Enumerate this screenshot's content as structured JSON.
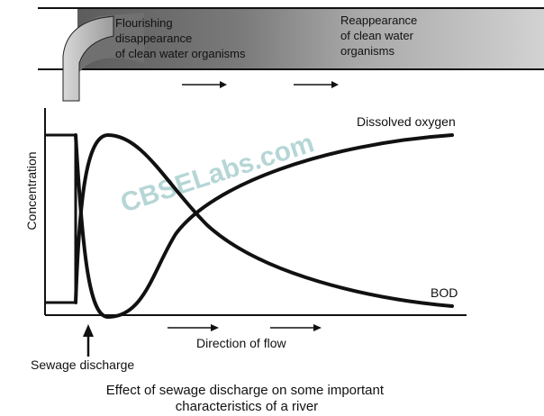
{
  "river_banner": {
    "text_left": [
      "Flourishing",
      "disappearance",
      "of clean water organisms"
    ],
    "text_right": [
      "Reappearance",
      "of clean water",
      "organisms"
    ]
  },
  "graph": {
    "ylabel": "Concentration",
    "curve_labels": {
      "oxygen": "Dissolved oxygen",
      "bod": "BOD"
    },
    "flow_label": "Direction of flow",
    "discharge_label": "Sewage discharge"
  },
  "watermark": "CBSELabs.com",
  "caption": [
    "Effect of sewage discharge on some important",
    "characteristics of a river"
  ],
  "colors": {
    "ink": "#111111",
    "river_dark": "#6e6e6e",
    "river_light": "#cfcfcf",
    "watermark": "#9ec9c9"
  }
}
